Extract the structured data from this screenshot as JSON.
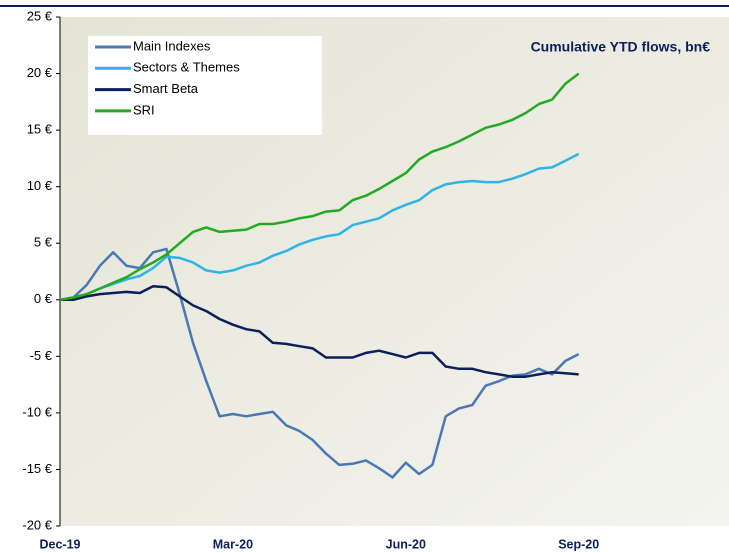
{
  "chart_data": {
    "type": "line",
    "title": "Cumulative YTD flows, bn€",
    "categories": [
      "Dec-19",
      null,
      null,
      null,
      null,
      null,
      null,
      null,
      null,
      null,
      null,
      null,
      null,
      "Mar-20",
      null,
      null,
      null,
      null,
      null,
      null,
      null,
      null,
      null,
      null,
      null,
      null,
      "Jun-20",
      null,
      null,
      null,
      null,
      null,
      null,
      null,
      null,
      null,
      null,
      null,
      null,
      "Sep-20"
    ],
    "series": [
      {
        "name": "Main Indexes",
        "color": "#4a78b5",
        "values": [
          0,
          0.2,
          1.3,
          3.0,
          4.2,
          3.0,
          2.8,
          4.2,
          4.5,
          0.5,
          -3.8,
          -7.2,
          -10.3,
          -10.1,
          -10.3,
          -10.1,
          -9.9,
          -11.1,
          -11.6,
          -12.4,
          -13.6,
          -14.6,
          -14.5,
          -14.2,
          -14.9,
          -15.7,
          -14.4,
          -15.4,
          -14.6,
          -10.3,
          -9.6,
          -9.3,
          -7.6,
          -7.2,
          -6.7,
          -6.6,
          -6.1,
          -6.6,
          -5.4,
          -4.8
        ]
      },
      {
        "name": "Sectors & Themes",
        "color": "#2eb4e6",
        "values": [
          0,
          0.1,
          0.5,
          1.0,
          1.4,
          1.8,
          2.1,
          2.8,
          3.8,
          3.7,
          3.3,
          2.6,
          2.4,
          2.6,
          3.0,
          3.3,
          3.9,
          4.3,
          4.9,
          5.3,
          5.6,
          5.8,
          6.6,
          6.9,
          7.2,
          7.9,
          8.4,
          8.8,
          9.7,
          10.2,
          10.4,
          10.5,
          10.4,
          10.4,
          10.7,
          11.1,
          11.6,
          11.7,
          12.3,
          12.9
        ]
      },
      {
        "name": "Smart Beta",
        "color": "#0c1f5a",
        "values": [
          0,
          0,
          0.3,
          0.5,
          0.6,
          0.7,
          0.6,
          1.2,
          1.1,
          0.3,
          -0.5,
          -1.0,
          -1.7,
          -2.2,
          -2.6,
          -2.8,
          -3.8,
          -3.9,
          -4.1,
          -4.3,
          -5.1,
          -5.1,
          -5.1,
          -4.7,
          -4.5,
          -4.8,
          -5.1,
          -4.7,
          -4.7,
          -5.9,
          -6.1,
          -6.1,
          -6.4,
          -6.6,
          -6.8,
          -6.8,
          -6.6,
          -6.4,
          -6.5,
          -6.6
        ]
      },
      {
        "name": "SRI",
        "color": "#22aa22",
        "values": [
          0,
          0.2,
          0.5,
          1.0,
          1.5,
          2.0,
          2.7,
          3.3,
          4.0,
          5.0,
          6.0,
          6.4,
          6.0,
          6.1,
          6.2,
          6.7,
          6.7,
          6.9,
          7.2,
          7.4,
          7.8,
          7.9,
          8.8,
          9.2,
          9.8,
          10.5,
          11.2,
          12.4,
          13.1,
          13.5,
          14.0,
          14.6,
          15.2,
          15.5,
          15.9,
          16.5,
          17.3,
          17.7,
          19.1,
          20.0
        ]
      }
    ],
    "ylim": [
      -20,
      25
    ],
    "yticks": [
      {
        "value": -20,
        "label": "-20 €"
      },
      {
        "value": -15,
        "label": "-15 €"
      },
      {
        "value": -10,
        "label": "-10 €"
      },
      {
        "value": -5,
        "label": "-5 €"
      },
      {
        "value": 0,
        "label": "0 €"
      },
      {
        "value": 5,
        "label": "5 €"
      },
      {
        "value": 10,
        "label": "10 €"
      },
      {
        "value": 15,
        "label": "15 €"
      },
      {
        "value": 20,
        "label": "20 €"
      },
      {
        "value": 25,
        "label": "25 €"
      }
    ],
    "legend": "upper left"
  }
}
